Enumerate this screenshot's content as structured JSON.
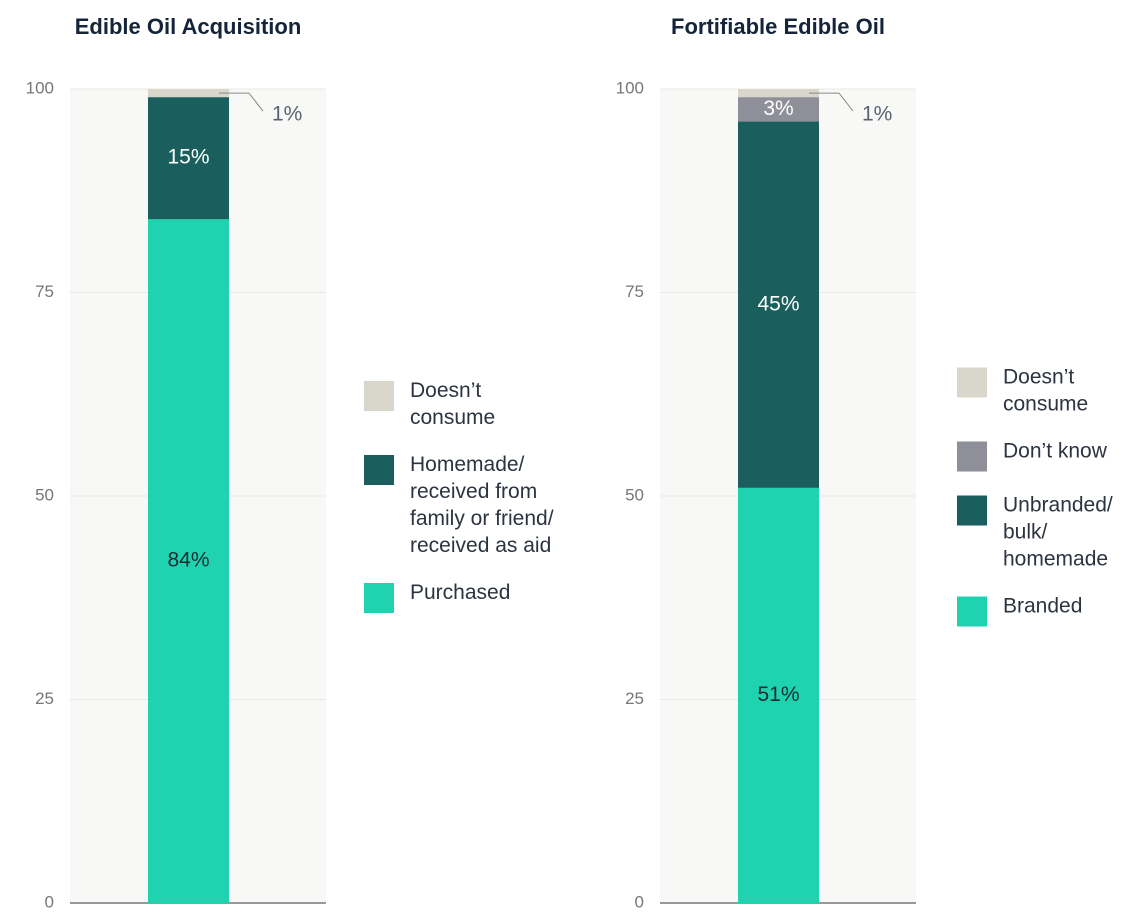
{
  "chart_data": [
    {
      "type": "stacked-bar",
      "title": "Edible Oil Acquisition",
      "ylim": [
        0,
        100
      ],
      "yticks": [
        0,
        25,
        50,
        75,
        100
      ],
      "grid": true,
      "series": [
        {
          "name": "Purchased",
          "color": "#20d3b0",
          "label_color": "#1c2a33",
          "values": [
            84
          ],
          "value_labels": [
            "84%"
          ]
        },
        {
          "name": "Homemade/\nreceived from\nfamily or friend/\nreceived as aid",
          "color": "#1a5e5e",
          "label_color": "#ffffff",
          "values": [
            15
          ],
          "value_labels": [
            "15%"
          ]
        },
        {
          "name": "Doesn’t\nconsume",
          "color": "#d9d6cb",
          "label_color": "#5a6470",
          "values": [
            1
          ],
          "value_labels": [
            "1%"
          ]
        }
      ]
    },
    {
      "type": "stacked-bar",
      "title": "Fortifiable Edible Oil",
      "ylim": [
        0,
        100
      ],
      "yticks": [
        0,
        25,
        50,
        75,
        100
      ],
      "grid": true,
      "series": [
        {
          "name": "Branded",
          "color": "#20d3b0",
          "label_color": "#1c2a33",
          "values": [
            51
          ],
          "value_labels": [
            "51%"
          ]
        },
        {
          "name": "Unbranded/\nbulk/\nhomemade",
          "color": "#1a5e5e",
          "label_color": "#ffffff",
          "values": [
            45
          ],
          "value_labels": [
            "45%"
          ]
        },
        {
          "name": "Don’t know",
          "color": "#8e8f98",
          "label_color": "#ffffff",
          "values": [
            3
          ],
          "value_labels": [
            "3%"
          ]
        },
        {
          "name": "Doesn’t\nconsume",
          "color": "#d9d6cb",
          "label_color": "#5a6470",
          "values": [
            1
          ],
          "value_labels": [
            "1%"
          ]
        }
      ]
    }
  ]
}
